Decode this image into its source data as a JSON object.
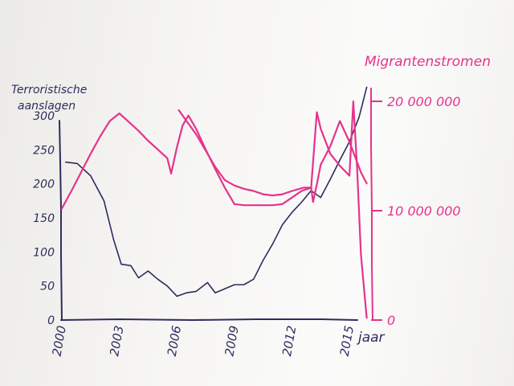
{
  "colors": {
    "paper": "#f6f5f3",
    "axis_ink": "#2f2c5e",
    "left_series_ink": "#2f2c5e",
    "right_series_ink": "#e5338c"
  },
  "chart_data": {
    "type": "line",
    "title": "",
    "xlabel": "jaar",
    "ylabel_left": "Terroristische aanslagen",
    "ylabel_right": "Migrantenstromen",
    "xlim": [
      2000,
      2016
    ],
    "ylim_left": [
      0,
      300
    ],
    "ylim_right": [
      0,
      20000000
    ],
    "x_ticks": [
      "2000",
      "2003",
      "2006",
      "2009",
      "2012",
      "2015"
    ],
    "y_ticks_left": [
      "0",
      "50",
      "100",
      "150",
      "200",
      "250",
      "300"
    ],
    "y_ticks_right": [
      "0",
      "10 000 000",
      "20 000 000"
    ],
    "grid": false,
    "legend": "none",
    "series": [
      {
        "axis": "left",
        "color": "#2f2c5e",
        "x": [
          2000.2,
          2000.8,
          2001.5,
          2002.2,
          2002.7,
          2003.1,
          2003.6,
          2004.0,
          2004.5,
          2005.0,
          2005.5,
          2006.0,
          2006.5,
          2007.0,
          2007.6,
          2008.0,
          2008.5,
          2009.0,
          2009.5,
          2010.0,
          2010.5,
          2011.0,
          2011.5,
          2012.0,
          2012.5,
          2013.0,
          2013.5,
          2014.0,
          2014.5,
          2015.0,
          2015.5,
          2015.9
        ],
        "y": [
          232,
          230,
          212,
          175,
          118,
          82,
          80,
          62,
          72,
          60,
          50,
          35,
          40,
          42,
          55,
          40,
          46,
          52,
          52,
          60,
          88,
          112,
          140,
          158,
          173,
          190,
          180,
          207,
          235,
          262,
          298,
          342
        ]
      },
      {
        "axis": "right",
        "color": "#e5338c",
        "x": [
          2000.0,
          2000.5,
          2001.0,
          2001.5,
          2002.0,
          2002.5,
          2003.0,
          2003.5,
          2004.0,
          2004.5,
          2005.0,
          2005.5,
          2005.7,
          2006.0,
          2006.3,
          2006.6,
          2007.0,
          2007.5,
          2008.0,
          2008.5,
          2009.0,
          2009.5,
          2010.0,
          2010.5,
          2011.0,
          2011.5,
          2012.0,
          2012.5,
          2013.0,
          2013.3,
          2013.5,
          2014.0,
          2014.5,
          2015.0,
          2015.2,
          2015.4,
          2015.6,
          2015.9
        ],
        "y": [
          10200000,
          11800000,
          13500000,
          15200000,
          16800000,
          18200000,
          18900000,
          18100000,
          17300000,
          16400000,
          15600000,
          14800000,
          13400000,
          15800000,
          17800000,
          18700000,
          17500000,
          15600000,
          13800000,
          12100000,
          10600000,
          10500000,
          10500000,
          10500000,
          10500000,
          10600000,
          11200000,
          11800000,
          12100000,
          19000000,
          17500000,
          15200000,
          14100000,
          13200000,
          20000000,
          13800000,
          6000000,
          200000
        ]
      },
      {
        "axis": "right",
        "color": "#e5338c",
        "x": [
          2006.1,
          2006.5,
          2007.0,
          2007.5,
          2008.0,
          2008.5,
          2009.0,
          2009.5,
          2010.0,
          2010.5,
          2011.0,
          2011.5,
          2012.0,
          2012.6,
          2013.0,
          2013.1,
          2013.3,
          2013.5,
          2014.0,
          2014.5,
          2015.0,
          2015.3,
          2015.6,
          2015.9
        ],
        "y": [
          19200000,
          18200000,
          17000000,
          15500000,
          14000000,
          12800000,
          12300000,
          12000000,
          11800000,
          11500000,
          11400000,
          11500000,
          11800000,
          12100000,
          12100000,
          10800000,
          12400000,
          14200000,
          15900000,
          18200000,
          16300000,
          14900000,
          13500000,
          12500000
        ]
      }
    ]
  }
}
